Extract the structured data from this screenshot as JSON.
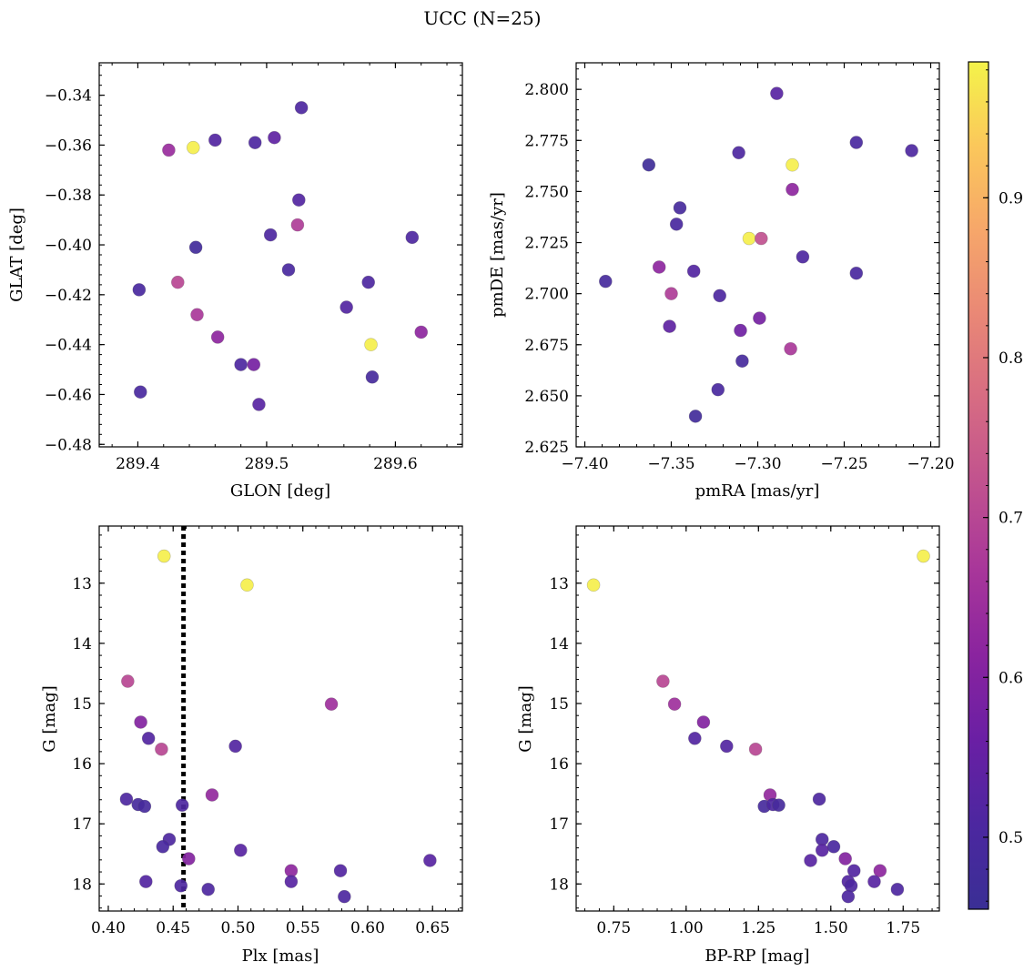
{
  "figure": {
    "title": "UCC (N=25)"
  },
  "colorbar": {
    "range": [
      0.455,
      0.985
    ],
    "ticks": [
      0.5,
      0.6,
      0.7,
      0.8,
      0.9
    ],
    "tick_labels": [
      "0.5",
      "0.6",
      "0.7",
      "0.8",
      "0.9"
    ],
    "colormap": "plasma"
  },
  "chart_data": [
    {
      "type": "scatter",
      "xlabel": "GLON [deg]",
      "ylabel": "GLAT [deg]",
      "xlim": [
        289.37,
        289.652
      ],
      "ylim": [
        -0.481,
        -0.327
      ],
      "y_inverted": false,
      "xticks": [
        289.4,
        289.5,
        289.6
      ],
      "xtick_labels": [
        "289.4",
        "289.5",
        "289.6"
      ],
      "yticks": [
        -0.48,
        -0.46,
        -0.44,
        -0.42,
        -0.4,
        -0.38,
        -0.36,
        -0.34
      ],
      "ytick_labels": [
        "−0.48",
        "−0.46",
        "−0.44",
        "−0.42",
        "−0.40",
        "−0.38",
        "−0.36",
        "−0.34"
      ],
      "points": [
        {
          "x": 289.401,
          "y": -0.418,
          "c": 0.5
        },
        {
          "x": 289.402,
          "y": -0.459,
          "c": 0.5
        },
        {
          "x": 289.424,
          "y": -0.362,
          "c": 0.64
        },
        {
          "x": 289.431,
          "y": -0.415,
          "c": 0.7
        },
        {
          "x": 289.443,
          "y": -0.361,
          "c": 0.98
        },
        {
          "x": 289.445,
          "y": -0.401,
          "c": 0.48
        },
        {
          "x": 289.446,
          "y": -0.428,
          "c": 0.67
        },
        {
          "x": 289.46,
          "y": -0.358,
          "c": 0.52
        },
        {
          "x": 289.462,
          "y": -0.437,
          "c": 0.62
        },
        {
          "x": 289.48,
          "y": -0.448,
          "c": 0.51
        },
        {
          "x": 289.49,
          "y": -0.448,
          "c": 0.58
        },
        {
          "x": 289.491,
          "y": -0.359,
          "c": 0.51
        },
        {
          "x": 289.494,
          "y": -0.464,
          "c": 0.53
        },
        {
          "x": 289.503,
          "y": -0.396,
          "c": 0.51
        },
        {
          "x": 289.506,
          "y": -0.357,
          "c": 0.54
        },
        {
          "x": 289.517,
          "y": -0.41,
          "c": 0.5
        },
        {
          "x": 289.524,
          "y": -0.392,
          "c": 0.68
        },
        {
          "x": 289.525,
          "y": -0.382,
          "c": 0.52
        },
        {
          "x": 289.527,
          "y": -0.345,
          "c": 0.51
        },
        {
          "x": 289.562,
          "y": -0.425,
          "c": 0.52
        },
        {
          "x": 289.579,
          "y": -0.415,
          "c": 0.51
        },
        {
          "x": 289.581,
          "y": -0.44,
          "c": 0.98
        },
        {
          "x": 289.582,
          "y": -0.453,
          "c": 0.49
        },
        {
          "x": 289.613,
          "y": -0.397,
          "c": 0.51
        },
        {
          "x": 289.62,
          "y": -0.435,
          "c": 0.62
        }
      ]
    },
    {
      "type": "scatter",
      "xlabel": "pmRA [mas/yr]",
      "ylabel": "pmDE [mas/yr]",
      "xlim": [
        -7.405,
        -7.195
      ],
      "ylim": [
        2.625,
        2.813
      ],
      "y_inverted": false,
      "xticks": [
        -7.4,
        -7.35,
        -7.3,
        -7.25,
        -7.2
      ],
      "xtick_labels": [
        "−7.40",
        "−7.35",
        "−7.30",
        "−7.25",
        "−7.20"
      ],
      "yticks": [
        2.625,
        2.65,
        2.675,
        2.7,
        2.725,
        2.75,
        2.775,
        2.8
      ],
      "ytick_labels": [
        "2.625",
        "2.650",
        "2.675",
        "2.700",
        "2.725",
        "2.750",
        "2.775",
        "2.800"
      ],
      "points": [
        {
          "x": -7.388,
          "y": 2.706,
          "c": 0.49
        },
        {
          "x": -7.363,
          "y": 2.763,
          "c": 0.47
        },
        {
          "x": -7.357,
          "y": 2.713,
          "c": 0.62
        },
        {
          "x": -7.351,
          "y": 2.684,
          "c": 0.54
        },
        {
          "x": -7.35,
          "y": 2.7,
          "c": 0.68
        },
        {
          "x": -7.347,
          "y": 2.734,
          "c": 0.5
        },
        {
          "x": -7.345,
          "y": 2.742,
          "c": 0.49
        },
        {
          "x": -7.337,
          "y": 2.711,
          "c": 0.52
        },
        {
          "x": -7.336,
          "y": 2.64,
          "c": 0.48
        },
        {
          "x": -7.323,
          "y": 2.653,
          "c": 0.5
        },
        {
          "x": -7.322,
          "y": 2.699,
          "c": 0.51
        },
        {
          "x": -7.311,
          "y": 2.769,
          "c": 0.51
        },
        {
          "x": -7.31,
          "y": 2.682,
          "c": 0.57
        },
        {
          "x": -7.309,
          "y": 2.667,
          "c": 0.49
        },
        {
          "x": -7.305,
          "y": 2.727,
          "c": 0.98
        },
        {
          "x": -7.298,
          "y": 2.727,
          "c": 0.72
        },
        {
          "x": -7.299,
          "y": 2.688,
          "c": 0.58
        },
        {
          "x": -7.289,
          "y": 2.798,
          "c": 0.53
        },
        {
          "x": -7.281,
          "y": 2.673,
          "c": 0.67
        },
        {
          "x": -7.28,
          "y": 2.763,
          "c": 0.98
        },
        {
          "x": -7.28,
          "y": 2.751,
          "c": 0.62
        },
        {
          "x": -7.274,
          "y": 2.718,
          "c": 0.51
        },
        {
          "x": -7.243,
          "y": 2.774,
          "c": 0.5
        },
        {
          "x": -7.243,
          "y": 2.71,
          "c": 0.5
        },
        {
          "x": -7.211,
          "y": 2.77,
          "c": 0.51
        }
      ]
    },
    {
      "type": "scatter",
      "xlabel": "Plx [mas]",
      "ylabel": "G [mag]",
      "xlim": [
        0.393,
        0.673
      ],
      "ylim": [
        12.05,
        18.45
      ],
      "y_inverted": true,
      "xticks": [
        0.4,
        0.45,
        0.5,
        0.55,
        0.6,
        0.65
      ],
      "xtick_labels": [
        "0.40",
        "0.45",
        "0.50",
        "0.55",
        "0.60",
        "0.65"
      ],
      "yticks": [
        13,
        14,
        15,
        16,
        17,
        18
      ],
      "ytick_labels": [
        "13",
        "14",
        "15",
        "16",
        "17",
        "18"
      ],
      "vline": 0.458,
      "points": [
        {
          "x": 0.443,
          "y": 12.55,
          "c": 0.98
        },
        {
          "x": 0.507,
          "y": 13.03,
          "c": 0.98
        },
        {
          "x": 0.415,
          "y": 14.63,
          "c": 0.7
        },
        {
          "x": 0.572,
          "y": 15.01,
          "c": 0.65
        },
        {
          "x": 0.425,
          "y": 15.31,
          "c": 0.6
        },
        {
          "x": 0.431,
          "y": 15.58,
          "c": 0.52
        },
        {
          "x": 0.498,
          "y": 15.71,
          "c": 0.52
        },
        {
          "x": 0.441,
          "y": 15.76,
          "c": 0.7
        },
        {
          "x": 0.48,
          "y": 16.52,
          "c": 0.63
        },
        {
          "x": 0.414,
          "y": 16.59,
          "c": 0.51
        },
        {
          "x": 0.423,
          "y": 16.68,
          "c": 0.49
        },
        {
          "x": 0.457,
          "y": 16.69,
          "c": 0.51
        },
        {
          "x": 0.428,
          "y": 16.71,
          "c": 0.49
        },
        {
          "x": 0.447,
          "y": 17.26,
          "c": 0.51
        },
        {
          "x": 0.442,
          "y": 17.38,
          "c": 0.5
        },
        {
          "x": 0.502,
          "y": 17.44,
          "c": 0.53
        },
        {
          "x": 0.462,
          "y": 17.58,
          "c": 0.6
        },
        {
          "x": 0.648,
          "y": 17.61,
          "c": 0.53
        },
        {
          "x": 0.541,
          "y": 17.78,
          "c": 0.62
        },
        {
          "x": 0.579,
          "y": 17.78,
          "c": 0.52
        },
        {
          "x": 0.429,
          "y": 17.96,
          "c": 0.52
        },
        {
          "x": 0.541,
          "y": 17.96,
          "c": 0.53
        },
        {
          "x": 0.456,
          "y": 18.03,
          "c": 0.51
        },
        {
          "x": 0.477,
          "y": 18.09,
          "c": 0.51
        },
        {
          "x": 0.582,
          "y": 18.21,
          "c": 0.51
        }
      ]
    },
    {
      "type": "scatter",
      "xlabel": "BP-RP [mag]",
      "ylabel": "G [mag]",
      "xlim": [
        0.62,
        1.875
      ],
      "ylim": [
        12.05,
        18.45
      ],
      "y_inverted": true,
      "xticks": [
        0.75,
        1.0,
        1.25,
        1.5,
        1.75
      ],
      "xtick_labels": [
        "0.75",
        "1.00",
        "1.25",
        "1.50",
        "1.75"
      ],
      "yticks": [
        13,
        14,
        15,
        16,
        17,
        18
      ],
      "ytick_labels": [
        "13",
        "14",
        "15",
        "16",
        "17",
        "18"
      ],
      "points": [
        {
          "x": 1.82,
          "y": 12.55,
          "c": 0.98
        },
        {
          "x": 0.68,
          "y": 13.03,
          "c": 0.98
        },
        {
          "x": 0.92,
          "y": 14.63,
          "c": 0.7
        },
        {
          "x": 0.96,
          "y": 15.01,
          "c": 0.65
        },
        {
          "x": 1.06,
          "y": 15.31,
          "c": 0.6
        },
        {
          "x": 1.03,
          "y": 15.58,
          "c": 0.52
        },
        {
          "x": 1.14,
          "y": 15.71,
          "c": 0.52
        },
        {
          "x": 1.24,
          "y": 15.76,
          "c": 0.7
        },
        {
          "x": 1.29,
          "y": 16.52,
          "c": 0.63
        },
        {
          "x": 1.46,
          "y": 16.59,
          "c": 0.51
        },
        {
          "x": 1.27,
          "y": 16.71,
          "c": 0.49
        },
        {
          "x": 1.3,
          "y": 16.68,
          "c": 0.51
        },
        {
          "x": 1.32,
          "y": 16.69,
          "c": 0.49
        },
        {
          "x": 1.47,
          "y": 17.26,
          "c": 0.51
        },
        {
          "x": 1.51,
          "y": 17.38,
          "c": 0.5
        },
        {
          "x": 1.47,
          "y": 17.44,
          "c": 0.53
        },
        {
          "x": 1.55,
          "y": 17.58,
          "c": 0.6
        },
        {
          "x": 1.43,
          "y": 17.61,
          "c": 0.53
        },
        {
          "x": 1.67,
          "y": 17.78,
          "c": 0.62
        },
        {
          "x": 1.58,
          "y": 17.78,
          "c": 0.52
        },
        {
          "x": 1.56,
          "y": 17.96,
          "c": 0.52
        },
        {
          "x": 1.65,
          "y": 17.96,
          "c": 0.53
        },
        {
          "x": 1.57,
          "y": 18.03,
          "c": 0.51
        },
        {
          "x": 1.73,
          "y": 18.09,
          "c": 0.51
        },
        {
          "x": 1.56,
          "y": 18.21,
          "c": 0.51
        }
      ]
    }
  ]
}
